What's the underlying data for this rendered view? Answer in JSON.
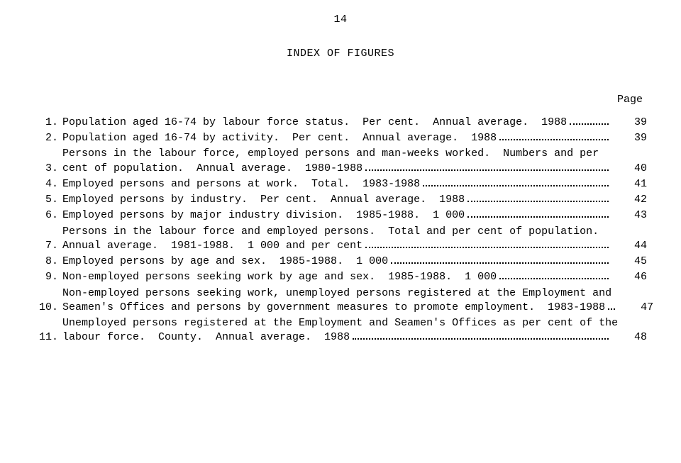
{
  "page_number": "14",
  "title": "INDEX OF FIGURES",
  "page_heading": "Page",
  "font_family": "Courier New",
  "font_size_pt": 15,
  "text_color": "#000000",
  "background_color": "#ffffff",
  "dot_leader_color": "#000000",
  "entries": [
    {
      "num": "1.",
      "lines": [
        "Population aged 16-74 by labour force status.  Per cent.  Annual average.  1988"
      ],
      "page": "39"
    },
    {
      "num": "2.",
      "lines": [
        "Population aged 16-74 by activity.  Per cent.  Annual average.  1988"
      ],
      "page": "39"
    },
    {
      "num": "3.",
      "lines": [
        "Persons in the labour force, employed persons and man-weeks worked.  Numbers and per",
        "cent of population.  Annual average.  1980-1988"
      ],
      "page": "40"
    },
    {
      "num": "4.",
      "lines": [
        "Employed persons and persons at work.  Total.  1983-1988"
      ],
      "page": "41"
    },
    {
      "num": "5.",
      "lines": [
        "Employed persons by industry.  Per cent.  Annual average.  1988"
      ],
      "page": "42"
    },
    {
      "num": "6.",
      "lines": [
        "Employed persons by major industry division.  1985-1988.  1 000"
      ],
      "page": "43"
    },
    {
      "num": "7.",
      "lines": [
        "Persons in the labour force and employed persons.  Total and per cent of population.",
        "Annual average.  1981-1988.  1 000 and per cent"
      ],
      "page": "44"
    },
    {
      "num": "8.",
      "lines": [
        "Employed persons by age and sex.  1985-1988.  1 000"
      ],
      "page": "45"
    },
    {
      "num": "9.",
      "lines": [
        "Non-employed persons seeking work by age and sex.  1985-1988.  1 000"
      ],
      "page": "46"
    },
    {
      "num": "10.",
      "lines": [
        "Non-employed persons seeking work, unemployed persons registered at the Employment and",
        "Seamen's Offices and persons by government measures to promote employment.  1983-1988"
      ],
      "page": "47"
    },
    {
      "num": "11.",
      "lines": [
        "Unemployed persons registered at the Employment and Seamen's Offices as per cent of the",
        "labour force.  County.  Annual average.  1988"
      ],
      "page": "48"
    }
  ]
}
